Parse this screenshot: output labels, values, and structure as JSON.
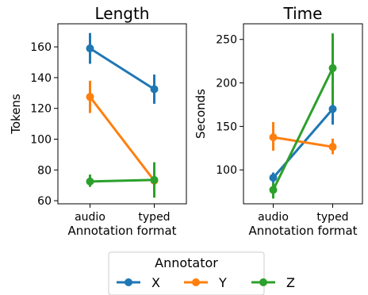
{
  "chart_data": [
    {
      "type": "line",
      "title": "Length",
      "xlabel": "Annotation format",
      "ylabel": "Tokens",
      "categories": [
        "audio",
        "typed"
      ],
      "ylim": [
        58,
        175
      ],
      "yticks": [
        60,
        80,
        100,
        120,
        140,
        160
      ],
      "grid": false,
      "series": [
        {
          "name": "X",
          "values": [
            159,
            132.5
          ],
          "ci": [
            [
              149,
              169
            ],
            [
              123,
              142
            ]
          ]
        },
        {
          "name": "Y",
          "values": [
            127.5,
            73
          ],
          "ci": [
            [
              117,
              138
            ],
            [
              66,
              80
            ]
          ]
        },
        {
          "name": "Z",
          "values": [
            72.5,
            73.5
          ],
          "ci": [
            [
              69,
              77
            ],
            [
              62,
              85
            ]
          ]
        }
      ]
    },
    {
      "type": "line",
      "title": "Time",
      "xlabel": "Annotation format",
      "ylabel": "Seconds",
      "categories": [
        "audio",
        "typed"
      ],
      "ylim": [
        61,
        268
      ],
      "yticks": [
        100,
        150,
        200,
        250
      ],
      "grid": false,
      "series": [
        {
          "name": "X",
          "values": [
            91,
            170
          ],
          "ci": [
            [
              85,
              97
            ],
            [
              152,
              186
            ]
          ]
        },
        {
          "name": "Y",
          "values": [
            137.5,
            126.5
          ],
          "ci": [
            [
              122,
              155
            ],
            [
              118,
              136
            ]
          ]
        },
        {
          "name": "Z",
          "values": [
            77,
            217
          ],
          "ci": [
            [
              67,
              85
            ],
            [
              175,
              257
            ]
          ]
        }
      ]
    }
  ],
  "legend": {
    "title": "Annotator",
    "placement": "bottom-center",
    "entries": [
      "X",
      "Y",
      "Z"
    ]
  },
  "colors": {
    "X": "#1f77b4",
    "Y": "#ff7f0e",
    "Z": "#2ca02c"
  }
}
